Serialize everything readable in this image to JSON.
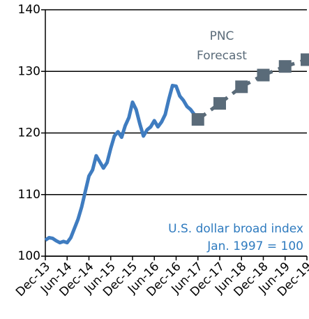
{
  "chart_data": {
    "type": "line",
    "categories": [
      "Dec-13",
      null,
      null,
      null,
      null,
      null,
      "Jun-14",
      null,
      null,
      null,
      null,
      null,
      "Dec-14",
      null,
      null,
      null,
      null,
      null,
      "Jun-15",
      null,
      null,
      null,
      null,
      null,
      "Dec-15",
      null,
      null,
      null,
      null,
      null,
      "Jun-16",
      null,
      null,
      null,
      null,
      null,
      "Dec-16",
      null,
      null,
      null,
      null,
      null,
      "Jun-17",
      null,
      null,
      null,
      null,
      null,
      "Dec-17",
      null,
      null,
      null,
      null,
      null,
      "Jun-18",
      null,
      null,
      null,
      null,
      null,
      "Dec-18",
      null,
      null,
      null,
      null,
      null,
      "Jun-19",
      null,
      null,
      null,
      null,
      null,
      "Dec-19"
    ],
    "series": [
      {
        "name": "U.S. dollar broad index",
        "color": "#3f7cc0",
        "values": [
          102.6,
          103,
          102.9,
          102.5,
          102.2,
          102.4,
          102.2,
          103,
          104.5,
          106,
          108,
          110.5,
          113,
          114,
          116.3,
          115.3,
          114.3,
          115.2,
          117.5,
          119.5,
          120.2,
          119.3,
          121.2,
          122.5,
          125,
          123.8,
          121.5,
          119.5,
          120.5,
          121,
          122,
          121,
          121.8,
          123,
          125.5,
          127.7,
          127.6,
          126,
          125.3,
          124.3,
          123.8,
          123,
          122.3,
          null,
          null,
          null,
          null,
          null,
          null,
          null,
          null,
          null,
          null,
          null,
          null,
          null,
          null,
          null,
          null,
          null,
          null,
          null,
          null,
          null,
          null,
          null,
          null,
          null,
          null,
          null,
          null,
          null,
          null
        ]
      },
      {
        "name": "PNC Forecast",
        "color": "#5a6b79",
        "values": [
          null,
          null,
          null,
          null,
          null,
          null,
          null,
          null,
          null,
          null,
          null,
          null,
          null,
          null,
          null,
          null,
          null,
          null,
          null,
          null,
          null,
          null,
          null,
          null,
          null,
          null,
          null,
          null,
          null,
          null,
          null,
          null,
          null,
          null,
          null,
          null,
          null,
          null,
          null,
          null,
          null,
          null,
          122.2,
          null,
          null,
          null,
          null,
          null,
          124.8,
          null,
          null,
          null,
          null,
          null,
          127.5,
          null,
          null,
          null,
          null,
          null,
          129.4,
          null,
          null,
          null,
          null,
          null,
          130.8,
          null,
          null,
          null,
          null,
          null,
          131.9
        ]
      }
    ],
    "annotations": [
      {
        "text": "PNC",
        "color": "#5a6b79"
      },
      {
        "text": "Forecast",
        "color": "#5a6b79"
      },
      {
        "text": "U.S. dollar broad index",
        "color": "#2f7bbf"
      },
      {
        "text": "Jan. 1997 = 100",
        "color": "#2f7bbf"
      }
    ],
    "ylim": [
      100,
      140
    ],
    "yticks": [
      100,
      110,
      120,
      130,
      140
    ],
    "grid": true
  }
}
